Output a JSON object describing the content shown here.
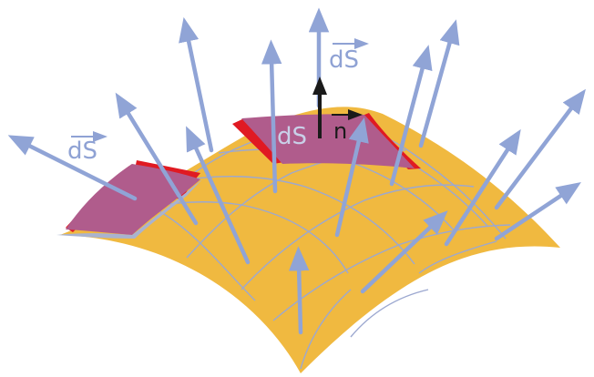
{
  "diagram": {
    "title": "",
    "colors": {
      "surface": "#F0B940",
      "grid": "#9CA8D0",
      "vector": "#90A4D6",
      "patch_fill": "#B05C8C",
      "patch_side": "#E01A22",
      "patch_under": "#A9B3CF",
      "normal": "#1A1A1A",
      "label_blue": "#8FA2D4",
      "label_light": "#C9D0E8"
    },
    "labels": {
      "ds_vector_left": "dS",
      "ds_vector_top": "dS",
      "ds_scalar": "dS",
      "normal_unit": "n"
    }
  }
}
